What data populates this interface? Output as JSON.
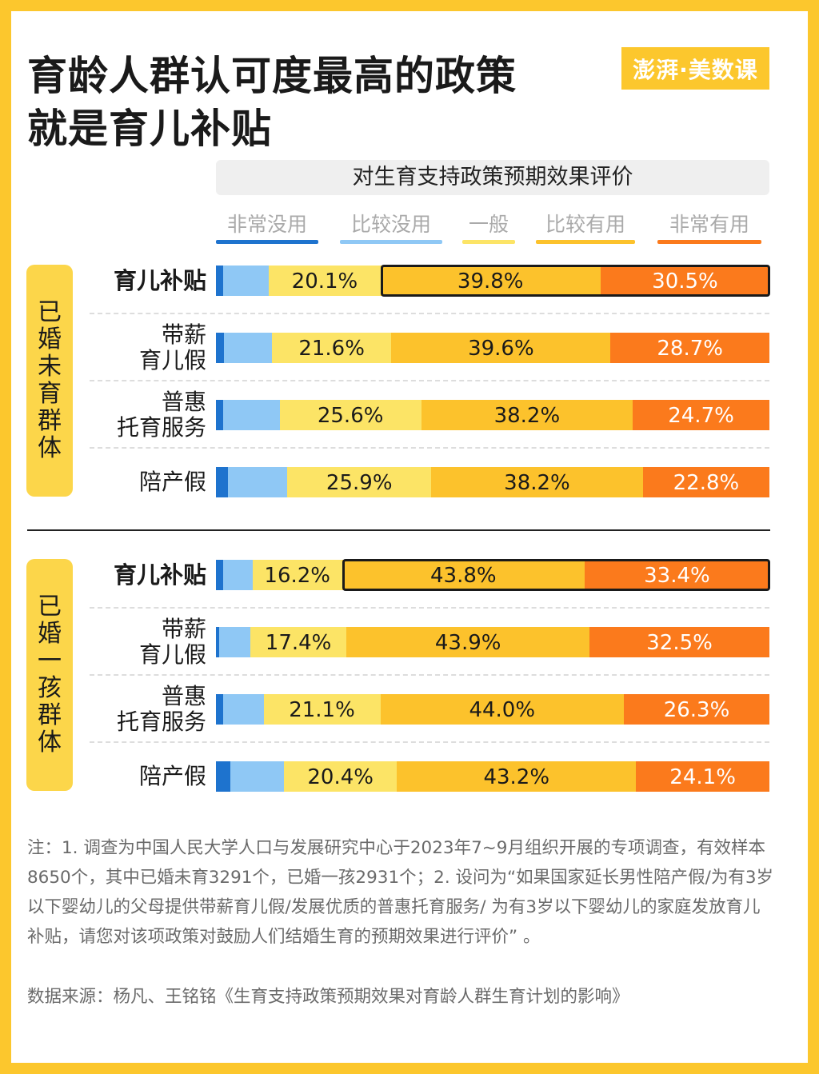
{
  "header": {
    "title_line1": "育龄人群认可度最高的政策",
    "title_line2": "就是育儿补贴",
    "logo_text": "澎湃·美数课"
  },
  "chart_data": {
    "type": "bar",
    "orientation": "horizontal",
    "stacked": true,
    "normalized": "percent",
    "title": "对生育支持政策预期效果评价",
    "legend": [
      "非常没用",
      "比较没用",
      "一般",
      "比较有用",
      "非常有用"
    ],
    "legend_position": "top",
    "colors": [
      "#1E73CE",
      "#8FC8F5",
      "#FCE466",
      "#FCC22C",
      "#FB7A1C"
    ],
    "groups": [
      {
        "name_chars": [
          "已",
          "婚",
          "未",
          "育",
          "群",
          "体"
        ],
        "rows": [
          {
            "label_lines": [
              "育儿补贴"
            ],
            "highlight": true,
            "values": [
              1.3,
              8.3,
              20.1,
              39.8,
              30.5
            ]
          },
          {
            "label_lines": [
              "带薪",
              "育儿假"
            ],
            "highlight": false,
            "values": [
              1.5,
              8.6,
              21.6,
              39.6,
              28.7
            ]
          },
          {
            "label_lines": [
              "普惠",
              "托育服务"
            ],
            "highlight": false,
            "values": [
              1.3,
              10.2,
              25.6,
              38.2,
              24.7
            ]
          },
          {
            "label_lines": [
              "陪产假"
            ],
            "highlight": false,
            "values": [
              2.1,
              10.8,
              25.9,
              38.2,
              22.8
            ]
          }
        ]
      },
      {
        "name_chars": [
          "已",
          "婚",
          "一",
          "孩",
          "群",
          "体"
        ],
        "rows": [
          {
            "label_lines": [
              "育儿补贴"
            ],
            "highlight": true,
            "values": [
              1.3,
              5.3,
              16.2,
              43.8,
              33.4
            ]
          },
          {
            "label_lines": [
              "带薪",
              "育儿假"
            ],
            "highlight": false,
            "values": [
              0.6,
              5.6,
              17.4,
              43.9,
              32.5
            ]
          },
          {
            "label_lines": [
              "普惠",
              "托育服务"
            ],
            "highlight": false,
            "values": [
              1.3,
              7.3,
              21.1,
              44.0,
              26.3
            ]
          },
          {
            "label_lines": [
              "陪产假"
            ],
            "highlight": false,
            "values": [
              2.6,
              9.7,
              20.4,
              43.2,
              24.1
            ]
          }
        ]
      }
    ]
  },
  "footer": {
    "note": "注：1.   调查为中国人民大学人口与发展研究中心于2023年7~9月组织开展的专项调查，有效样本8650个，其中已婚未育3291个，已婚一孩2931个；2.  设问为“如果国家延长男性陪产假/为有3岁以下婴幼儿的父母提供带薪育儿假/发展优质的普惠托育服务/ 为有3岁以下婴幼儿的家庭发放育儿补贴，请您对该项政策对鼓励人们结婚生育的预期效果进行评价” 。",
    "source": "数据来源：杨凡、王铭铭《生育支持政策预期效果对育龄人群生育计划的影响》"
  }
}
